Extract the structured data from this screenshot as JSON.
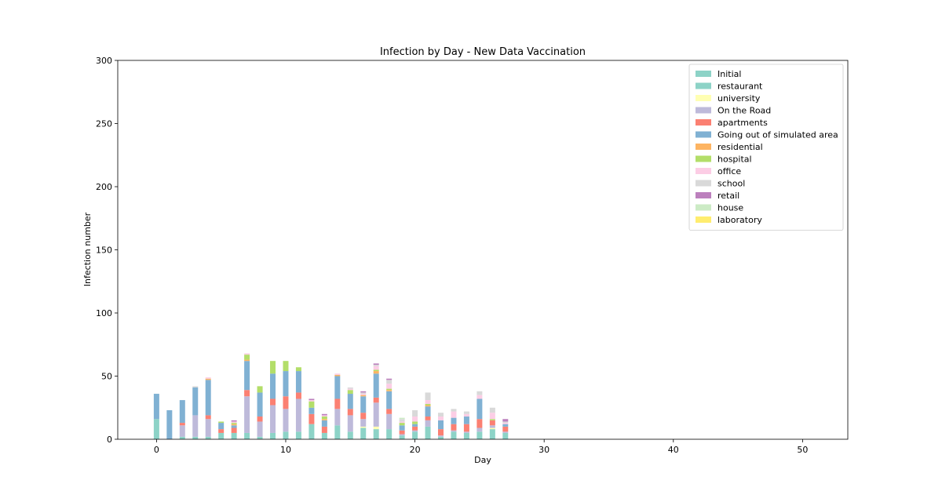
{
  "chart_data": {
    "type": "bar",
    "stacked": true,
    "title": "Infection by Day - New Data Vaccination",
    "xlabel": "Day",
    "ylabel": "Infection number",
    "xlim": [
      -3,
      53.5
    ],
    "ylim": [
      0,
      300
    ],
    "xticks": [
      0,
      10,
      20,
      30,
      40,
      50
    ],
    "yticks": [
      0,
      50,
      100,
      150,
      200,
      250,
      300
    ],
    "grid": false,
    "legend_position": "top-right",
    "x": [
      0,
      1,
      2,
      3,
      4,
      5,
      6,
      7,
      8,
      9,
      10,
      11,
      12,
      13,
      14,
      15,
      16,
      17,
      18,
      19,
      20,
      21,
      22,
      23,
      24,
      25,
      26,
      27
    ],
    "series": [
      {
        "name": "Initial",
        "color": "#8dd3c7",
        "values": [
          16,
          0,
          2,
          2,
          2,
          5,
          5,
          5,
          2,
          5,
          6,
          6,
          12,
          5,
          11,
          6,
          9,
          8,
          8,
          3,
          6,
          10,
          2,
          6,
          5,
          6,
          8,
          5
        ]
      },
      {
        "name": "restaurant",
        "color": "#8dd3c7",
        "values": [
          0,
          0,
          0,
          0,
          0,
          0,
          0,
          0,
          0,
          0,
          0,
          0,
          0,
          0,
          0,
          0,
          0,
          0,
          0,
          0,
          0,
          0,
          0,
          0,
          0,
          0,
          0,
          0
        ]
      },
      {
        "name": "university",
        "color": "#ffffb3",
        "values": [
          0,
          0,
          0,
          0,
          0,
          0,
          0,
          0,
          0,
          0,
          0,
          0,
          0,
          0,
          0,
          0,
          1,
          2,
          0,
          0,
          0,
          0,
          0,
          0,
          0,
          0,
          1,
          0
        ]
      },
      {
        "name": "On the Road",
        "color": "#bebada",
        "values": [
          0,
          0,
          9,
          17,
          14,
          0,
          0,
          29,
          12,
          22,
          18,
          26,
          0,
          0,
          13,
          13,
          6,
          19,
          12,
          1,
          1,
          5,
          1,
          1,
          1,
          3,
          2,
          1
        ]
      },
      {
        "name": "apartments",
        "color": "#fb8072",
        "values": [
          0,
          0,
          2,
          0,
          3,
          3,
          4,
          5,
          4,
          5,
          10,
          5,
          8,
          5,
          8,
          5,
          5,
          4,
          4,
          3,
          3,
          3,
          5,
          5,
          6,
          7,
          4,
          4
        ]
      },
      {
        "name": "Going out of simulated area",
        "color": "#80b1d3",
        "values": [
          20,
          23,
          18,
          22,
          28,
          5,
          2,
          23,
          19,
          20,
          20,
          17,
          5,
          5,
          18,
          12,
          13,
          19,
          14,
          4,
          2,
          8,
          7,
          5,
          6,
          16,
          0,
          2
        ]
      },
      {
        "name": "residential",
        "color": "#fdb462",
        "values": [
          0,
          0,
          0,
          0,
          1,
          0,
          1,
          1,
          0,
          0,
          0,
          0,
          0,
          1,
          1,
          0,
          1,
          2,
          1,
          0,
          0,
          1,
          0,
          0,
          0,
          0,
          0,
          0
        ]
      },
      {
        "name": "hospital",
        "color": "#b3de69",
        "values": [
          0,
          0,
          0,
          0,
          0,
          1,
          1,
          4,
          5,
          10,
          8,
          3,
          5,
          2,
          0,
          3,
          0,
          1,
          1,
          2,
          2,
          1,
          0,
          0,
          0,
          0,
          1,
          0
        ]
      },
      {
        "name": "office",
        "color": "#fccde5",
        "values": [
          0,
          0,
          0,
          0,
          1,
          0,
          1,
          1,
          0,
          0,
          0,
          0,
          1,
          1,
          1,
          1,
          1,
          3,
          4,
          1,
          4,
          3,
          3,
          5,
          2,
          3,
          5,
          1
        ]
      },
      {
        "name": "school",
        "color": "#d9d9d9",
        "values": [
          0,
          0,
          0,
          1,
          0,
          0,
          0,
          0,
          0,
          0,
          0,
          0,
          0,
          0,
          0,
          1,
          1,
          1,
          3,
          2,
          5,
          6,
          3,
          2,
          2,
          3,
          4,
          1
        ]
      },
      {
        "name": "retail",
        "color": "#bc80bd",
        "values": [
          0,
          0,
          0,
          0,
          0,
          0,
          1,
          0,
          0,
          0,
          0,
          0,
          1,
          1,
          0,
          0,
          1,
          1,
          1,
          0,
          0,
          0,
          0,
          0,
          0,
          0,
          0,
          2
        ]
      },
      {
        "name": "house",
        "color": "#ccebc5",
        "values": [
          0,
          0,
          0,
          0,
          0,
          0,
          0,
          0,
          0,
          0,
          0,
          0,
          0,
          0,
          0,
          0,
          0,
          0,
          0,
          1,
          0,
          0,
          0,
          0,
          0,
          0,
          0,
          0
        ]
      },
      {
        "name": "laboratory",
        "color": "#ffed6f",
        "values": [
          0,
          0,
          0,
          0,
          0,
          0,
          0,
          0,
          0,
          0,
          0,
          0,
          0,
          0,
          0,
          0,
          0,
          0,
          0,
          0,
          0,
          0,
          0,
          0,
          0,
          0,
          0,
          0
        ]
      }
    ]
  }
}
